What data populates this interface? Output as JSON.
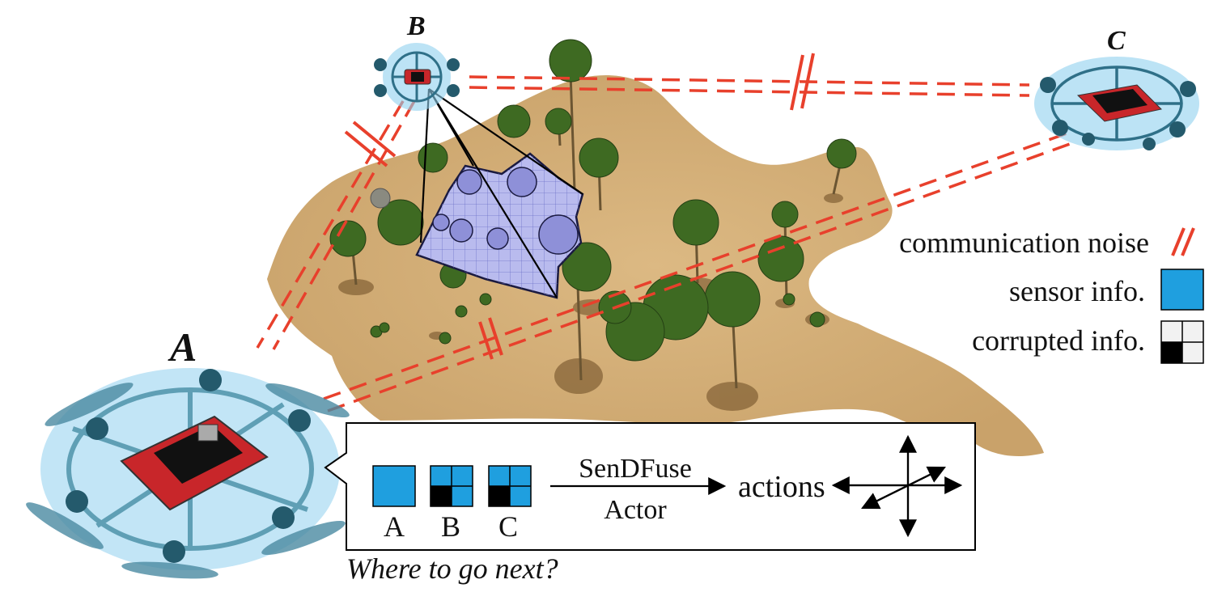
{
  "drones": {
    "a": "A",
    "b": "B",
    "c": "C"
  },
  "legend": {
    "noise": "communication noise",
    "sensor": "sensor info.",
    "corrupted": "corrupted info."
  },
  "callout": {
    "inputs": [
      "A",
      "B",
      "C"
    ],
    "model_top": "SenDFuse",
    "model_bottom": "Actor",
    "output": "actions",
    "question": "Where to go next?"
  },
  "colors": {
    "sand": "#d6b37c",
    "link": "#e8402c",
    "sensor": "#1f9fdf",
    "corrupt": "#000000",
    "frustum": "#b9bbee",
    "drone_glow": "#8fd0ee",
    "drone_body": "#c8262a",
    "tree": "#3e6a22"
  }
}
